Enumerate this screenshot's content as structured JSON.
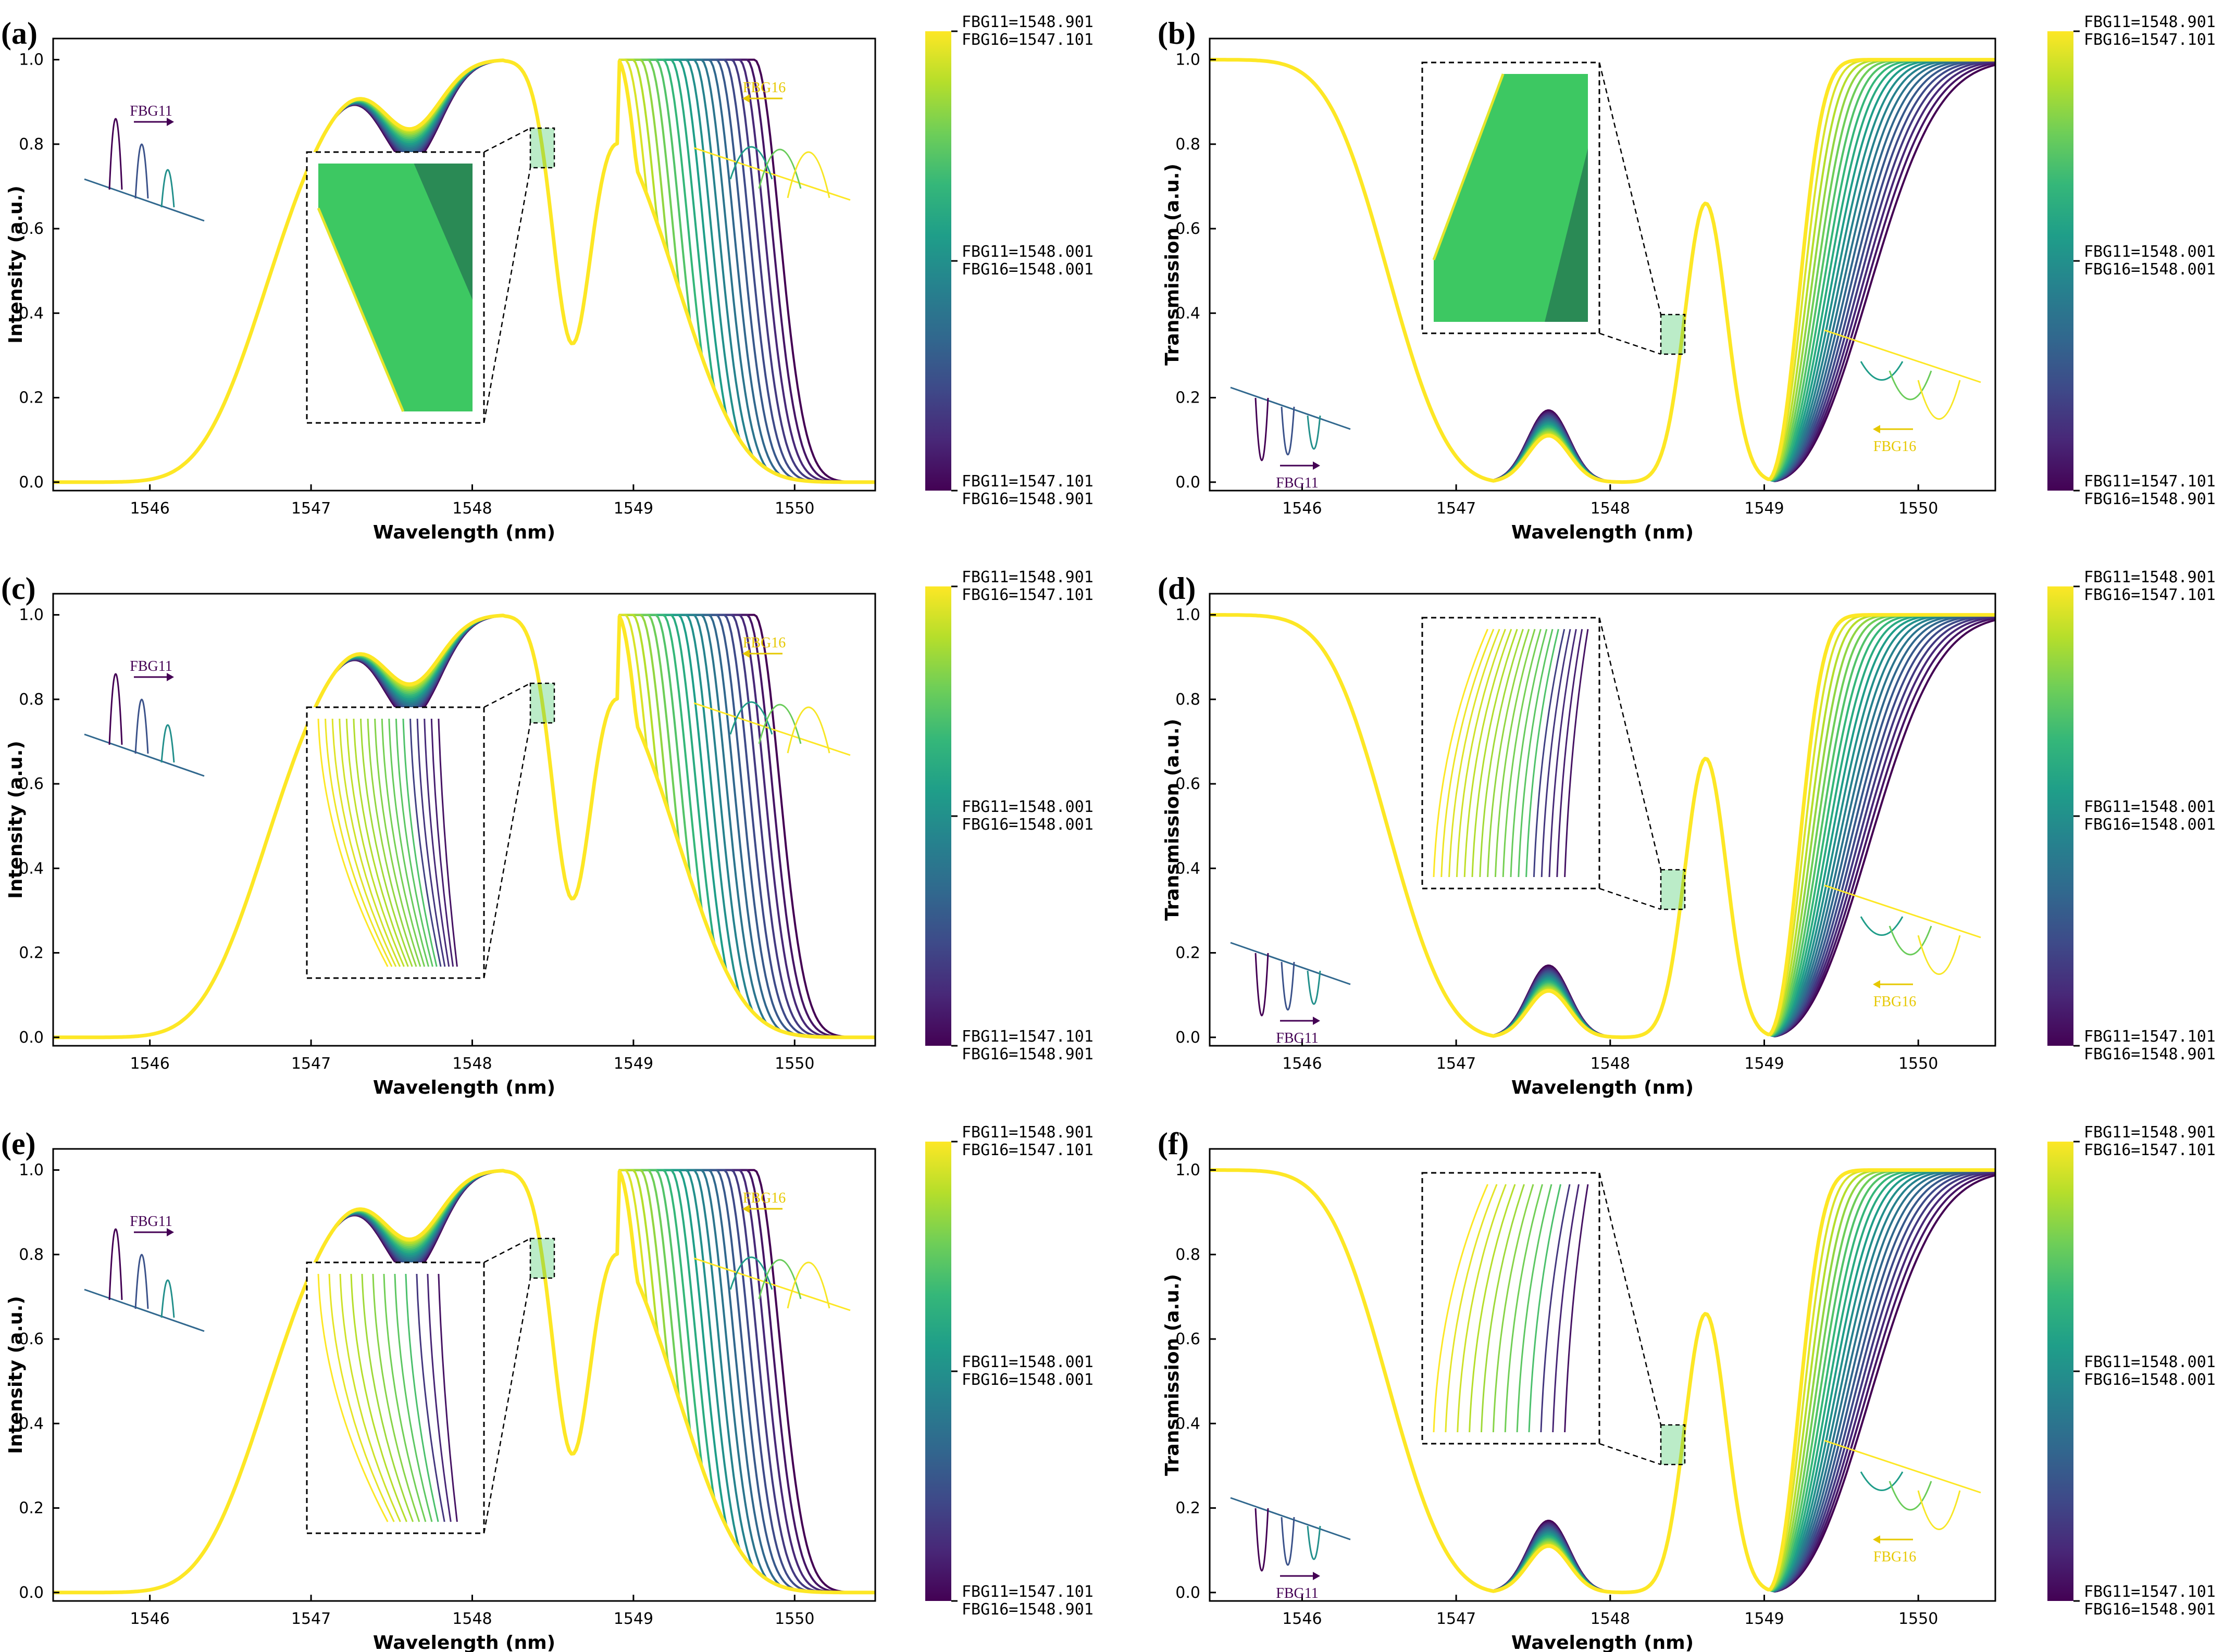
{
  "colors": {
    "viridis": [
      "#440154",
      "#482878",
      "#3e4a89",
      "#31688e",
      "#26828e",
      "#1f9e89",
      "#35b779",
      "#6ece58",
      "#b5de2b",
      "#fde725"
    ],
    "inset_green": "#3dc862",
    "inset_dark_green": "#2a8a55"
  },
  "colorbar": {
    "top_lines": [
      "FBG11=1548.901",
      "FBG16=1547.101"
    ],
    "mid_lines": [
      "FBG11=1548.001",
      "FBG16=1548.001"
    ],
    "bottom_lines": [
      "FBG11=1547.101",
      "FBG16=1548.901"
    ]
  },
  "inset_labels": {
    "left": "FBG11",
    "right": "FBG16"
  },
  "chart_data": [
    {
      "panel": "(a)",
      "type": "line",
      "mode": "reflection",
      "xlabel": "Wavelength (nm)",
      "ylabel": "Intensity (a.u.)",
      "xlim": [
        1545.4,
        1550.5
      ],
      "ylim": [
        -0.02,
        1.05
      ],
      "xticks": [
        "1546",
        "1547",
        "1548",
        "1549",
        "1550"
      ],
      "yticks": [
        "0.0",
        "0.2",
        "0.4",
        "0.6",
        "0.8",
        "1.0"
      ],
      "series_count": 19,
      "zoom_inset": "filled",
      "colorbar_range": [
        "FBG11=1547.101 / FBG16=1548.901",
        "FBG11=1548.901 / FBG16=1547.101"
      ]
    },
    {
      "panel": "(b)",
      "type": "line",
      "mode": "transmission",
      "xlabel": "Wavelength (nm)",
      "ylabel": "Transmission (a.u.)",
      "xlim": [
        1545.4,
        1550.5
      ],
      "ylim": [
        -0.02,
        1.05
      ],
      "xticks": [
        "1546",
        "1547",
        "1548",
        "1549",
        "1550"
      ],
      "yticks": [
        "0.0",
        "0.2",
        "0.4",
        "0.6",
        "0.8",
        "1.0"
      ],
      "series_count": 19,
      "zoom_inset": "filled",
      "colorbar_range": [
        "FBG11=1547.101 / FBG16=1548.901",
        "FBG11=1548.901 / FBG16=1547.101"
      ]
    },
    {
      "panel": "(c)",
      "type": "line",
      "mode": "reflection",
      "xlabel": "Wavelength (nm)",
      "ylabel": "Intensity (a.u.)",
      "xlim": [
        1545.4,
        1550.5
      ],
      "ylim": [
        -0.02,
        1.05
      ],
      "xticks": [
        "1546",
        "1547",
        "1548",
        "1549",
        "1550"
      ],
      "yticks": [
        "0.0",
        "0.2",
        "0.4",
        "0.6",
        "0.8",
        "1.0"
      ],
      "series_count": 19,
      "zoom_inset": "lines-dense",
      "colorbar_range": [
        "FBG11=1547.101 / FBG16=1548.901",
        "FBG11=1548.901 / FBG16=1547.101"
      ]
    },
    {
      "panel": "(d)",
      "type": "line",
      "mode": "transmission",
      "xlabel": "Wavelength (nm)",
      "ylabel": "Transmission (a.u.)",
      "xlim": [
        1545.4,
        1550.5
      ],
      "ylim": [
        -0.02,
        1.05
      ],
      "xticks": [
        "1546",
        "1547",
        "1548",
        "1549",
        "1550"
      ],
      "yticks": [
        "0.0",
        "0.2",
        "0.4",
        "0.6",
        "0.8",
        "1.0"
      ],
      "series_count": 19,
      "zoom_inset": "lines-dense",
      "colorbar_range": [
        "FBG11=1547.101 / FBG16=1548.901",
        "FBG11=1548.901 / FBG16=1547.101"
      ]
    },
    {
      "panel": "(e)",
      "type": "line",
      "mode": "reflection",
      "xlabel": "Wavelength (nm)",
      "ylabel": "Intensity (a.u.)",
      "xlim": [
        1545.4,
        1550.5
      ],
      "ylim": [
        -0.02,
        1.05
      ],
      "xticks": [
        "1546",
        "1547",
        "1548",
        "1549",
        "1550"
      ],
      "yticks": [
        "0.0",
        "0.2",
        "0.4",
        "0.6",
        "0.8",
        "1.0"
      ],
      "series_count": 19,
      "zoom_inset": "lines-sparse",
      "colorbar_range": [
        "FBG11=1547.101 / FBG16=1548.901",
        "FBG11=1548.901 / FBG16=1547.101"
      ]
    },
    {
      "panel": "(f)",
      "type": "line",
      "mode": "transmission",
      "xlabel": "Wavelength (nm)",
      "ylabel": "Transmission (a.u.)",
      "xlim": [
        1545.4,
        1550.5
      ],
      "ylim": [
        -0.02,
        1.05
      ],
      "xticks": [
        "1546",
        "1547",
        "1548",
        "1549",
        "1550"
      ],
      "yticks": [
        "0.0",
        "0.2",
        "0.4",
        "0.6",
        "0.8",
        "1.0"
      ],
      "series_count": 19,
      "zoom_inset": "lines-sparse",
      "colorbar_range": [
        "FBG11=1547.101 / FBG16=1548.901",
        "FBG11=1548.901 / FBG16=1547.101"
      ]
    }
  ]
}
